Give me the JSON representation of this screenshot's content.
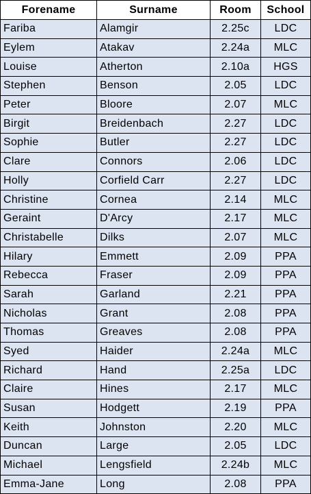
{
  "table": {
    "headers": [
      "Forename",
      "Surname",
      "Room",
      "School"
    ],
    "rows": [
      [
        "Fariba",
        "Alamgir",
        "2.25c",
        "LDC"
      ],
      [
        "Eylem",
        "Atakav",
        "2.24a",
        "MLC"
      ],
      [
        "Louise",
        "Atherton",
        "2.10a",
        "HGS"
      ],
      [
        "Stephen",
        "Benson",
        "2.05",
        "LDC"
      ],
      [
        "Peter",
        "Bloore",
        "2.07",
        "MLC"
      ],
      [
        "Birgit",
        "Breidenbach",
        "2.27",
        "LDC"
      ],
      [
        "Sophie",
        "Butler",
        "2.27",
        "LDC"
      ],
      [
        "Clare",
        "Connors",
        "2.06",
        "LDC"
      ],
      [
        "Holly",
        "Corfield Carr",
        "2.27",
        "LDC"
      ],
      [
        "Christine",
        "Cornea",
        "2.14",
        "MLC"
      ],
      [
        "Geraint",
        "D'Arcy",
        "2.17",
        "MLC"
      ],
      [
        "Christabelle",
        "Dilks",
        "2.07",
        "MLC"
      ],
      [
        "Hilary",
        "Emmett",
        "2.09",
        "PPA"
      ],
      [
        "Rebecca",
        "Fraser",
        "2.09",
        "PPA"
      ],
      [
        "Sarah",
        "Garland",
        "2.21",
        "PPA"
      ],
      [
        "Nicholas",
        "Grant",
        "2.08",
        "PPA"
      ],
      [
        "Thomas",
        "Greaves",
        "2.08",
        "PPA"
      ],
      [
        "Syed",
        "Haider",
        "2.24a",
        "MLC"
      ],
      [
        "Richard",
        "Hand",
        "2.25a",
        "LDC"
      ],
      [
        "Claire",
        "Hines",
        "2.17",
        "MLC"
      ],
      [
        "Susan",
        "Hodgett",
        "2.19",
        "PPA"
      ],
      [
        "Keith",
        "Johnston",
        "2.20",
        "MLC"
      ],
      [
        "Duncan",
        "Large",
        "2.05",
        "LDC"
      ],
      [
        "Michael",
        "Lengsfield",
        "2.24b",
        "MLC"
      ],
      [
        "Emma-Jane",
        "Long",
        "2.08",
        "PPA"
      ]
    ]
  },
  "colors": {
    "cell_fill": "#dce4f2",
    "header_fill": "#ffffff",
    "border": "#000000"
  }
}
